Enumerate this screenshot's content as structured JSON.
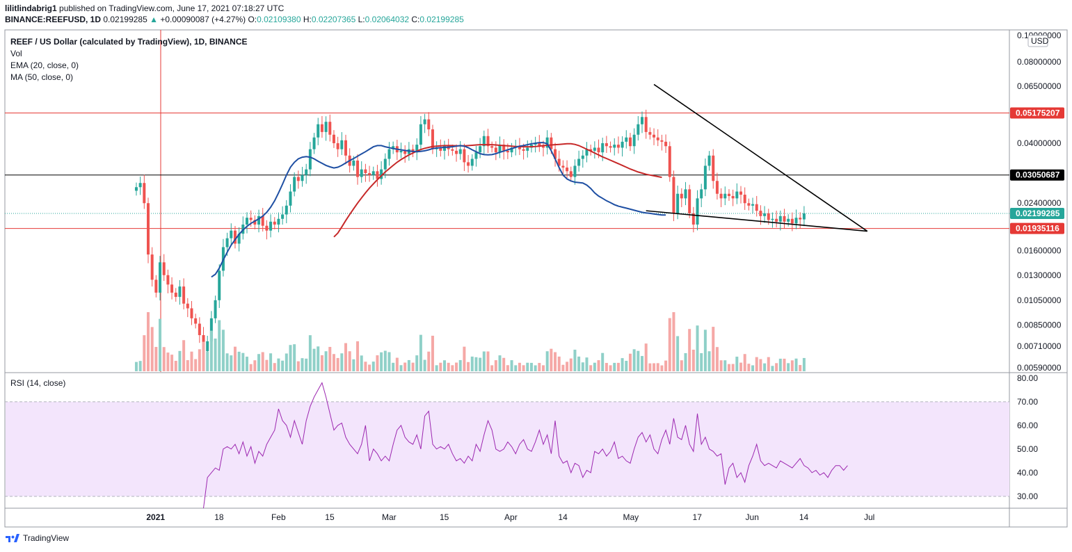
{
  "header": {
    "publisher_user": "lilitlindabrig1",
    "published_text": "published on TradingView.com, June 17, 2021 07:18:27 UTC",
    "symbol": "BINANCE:REEFUSD, 1D",
    "price": "0.02199285",
    "change": "+0.00090087 (+4.27%)",
    "ohlc": {
      "o_label": "O:",
      "o": "0.02109380",
      "h_label": "H:",
      "h": "0.02207365",
      "l_label": "L:",
      "l": "0.02064032",
      "c_label": "C:",
      "c": "0.02199285"
    }
  },
  "legend": {
    "title": "REEF / US Dollar (calculated by TradingView), 1D, BINANCE",
    "vol": "Vol",
    "ema": "EMA (20, close, 0)",
    "ma": "MA (50, close, 0)",
    "rsi": "RSI (14, close)"
  },
  "footer": {
    "brand": "TradingView"
  },
  "colors": {
    "up": "#26a69a",
    "down": "#ef5350",
    "up_vol": "#8fd0c8",
    "down_vol": "#f5a8a6",
    "ema": "#1e4fa3",
    "ma": "#c62828",
    "rsi_line": "#9c27b0",
    "rsi_band": "#f3e5fc",
    "trendline": "#000000",
    "hline_red": "#e53935",
    "hline_black": "#000000"
  },
  "chart_data": {
    "type": "candlestick",
    "symbol": "REEFUSD",
    "interval": "1D",
    "currency": "USD",
    "scale": "log",
    "ylim": [
      0.0057,
      0.105
    ],
    "price_axis_ticks": [
      "0.10000000",
      "0.08000000",
      "0.06500000",
      "0.05175207",
      "0.04000000",
      "0.03050687",
      "0.02400000",
      "0.02199285",
      "0.01935116",
      "0.01600000",
      "0.01300000",
      "0.01050000",
      "0.00850000",
      "0.00710000",
      "0.00590000"
    ],
    "price_axis_values": [
      0.1,
      0.08,
      0.065,
      0.052,
      0.04,
      0.0305,
      0.024,
      0.022,
      0.0194,
      0.016,
      0.013,
      0.0105,
      0.0085,
      0.0071,
      0.0059
    ],
    "price_tags": [
      {
        "label": "0.05175207",
        "value": 0.05175207,
        "style": "red"
      },
      {
        "label": "0.03050687",
        "value": 0.03050687,
        "style": "black"
      },
      {
        "label": "0.02199285",
        "value": 0.02199285,
        "style": "teal"
      },
      {
        "label": "0.01935116",
        "value": 0.01935116,
        "style": "red"
      }
    ],
    "x_axis_labels": [
      {
        "label": "2021",
        "day": 2
      },
      {
        "label": "18",
        "day": 18
      },
      {
        "label": "Feb",
        "day": 33
      },
      {
        "label": "15",
        "day": 46
      },
      {
        "label": "Mar",
        "day": 61
      },
      {
        "label": "15",
        "day": 75
      },
      {
        "label": "Apr",
        "day": 92
      },
      {
        "label": "14",
        "day": 105
      },
      {
        "label": "May",
        "day": 122
      },
      {
        "label": "17",
        "day": 139
      },
      {
        "label": "Jun",
        "day": 153
      },
      {
        "label": "14",
        "day": 166
      },
      {
        "label": "Jul",
        "day": 183
      }
    ],
    "axis_currency_label": "USD",
    "series_first_day": -3,
    "closes": [
      0.0275,
      0.0285,
      0.024,
      0.0155,
      0.0125,
      0.0112,
      0.0145,
      0.013,
      0.012,
      0.0112,
      0.0108,
      0.0118,
      0.0102,
      0.0098,
      0.009,
      0.0086,
      0.0078,
      0.0068,
      0.0074,
      0.009,
      0.0105,
      0.0135,
      0.0165,
      0.0178,
      0.019,
      0.017,
      0.0185,
      0.02,
      0.0212,
      0.0208,
      0.02,
      0.0215,
      0.0198,
      0.019,
      0.0205,
      0.02,
      0.021,
      0.0218,
      0.0235,
      0.0265,
      0.03,
      0.029,
      0.0305,
      0.032,
      0.038,
      0.042,
      0.047,
      0.044,
      0.048,
      0.043,
      0.04,
      0.038,
      0.041,
      0.036,
      0.033,
      0.0345,
      0.03,
      0.032,
      0.031,
      0.0305,
      0.0315,
      0.0295,
      0.032,
      0.035,
      0.038,
      0.039,
      0.037,
      0.0375,
      0.0365,
      0.038,
      0.037,
      0.0395,
      0.047,
      0.049,
      0.045,
      0.038,
      0.0385,
      0.0375,
      0.039,
      0.038,
      0.0375,
      0.0365,
      0.038,
      0.034,
      0.033,
      0.035,
      0.037,
      0.039,
      0.0425,
      0.039,
      0.0385,
      0.037,
      0.0395,
      0.0375,
      0.037,
      0.0385,
      0.039,
      0.038,
      0.0375,
      0.0385,
      0.0395,
      0.04,
      0.039,
      0.0385,
      0.042,
      0.038,
      0.035,
      0.033,
      0.0325,
      0.0315,
      0.03,
      0.033,
      0.035,
      0.036,
      0.038,
      0.0375,
      0.0385,
      0.037,
      0.04,
      0.039,
      0.0385,
      0.0395,
      0.0385,
      0.0405,
      0.042,
      0.039,
      0.043,
      0.047,
      0.05,
      0.044,
      0.043,
      0.042,
      0.041,
      0.0405,
      0.039,
      0.03,
      0.022,
      0.026,
      0.025,
      0.027,
      0.022,
      0.02,
      0.025,
      0.027,
      0.033,
      0.036,
      0.029,
      0.026,
      0.025,
      0.026,
      0.0255,
      0.025,
      0.0265,
      0.0258,
      0.024,
      0.0235,
      0.0238,
      0.0225,
      0.0215,
      0.022,
      0.0208,
      0.021,
      0.0205,
      0.0215,
      0.0205,
      0.021,
      0.0202,
      0.0212,
      0.0209,
      0.022
    ],
    "ema": {
      "name": "EMA (20, close, 0)",
      "first_day": 16,
      "values": [
        0.0128,
        0.0131,
        0.0138,
        0.0148,
        0.0158,
        0.0168,
        0.0176,
        0.0184,
        0.0191,
        0.0197,
        0.0202,
        0.0206,
        0.021,
        0.0215,
        0.0222,
        0.0232,
        0.0245,
        0.0262,
        0.0282,
        0.0305,
        0.0326,
        0.034,
        0.035,
        0.0355,
        0.0357,
        0.0355,
        0.035,
        0.0343,
        0.0337,
        0.0331,
        0.0327,
        0.0324,
        0.0326,
        0.0331,
        0.0338,
        0.0345,
        0.0351,
        0.0358,
        0.0365,
        0.0372,
        0.038,
        0.0388,
        0.0392,
        0.0392,
        0.0388,
        0.0385,
        0.0382,
        0.038,
        0.0378,
        0.0376,
        0.0374,
        0.0373,
        0.0372,
        0.0373,
        0.0375,
        0.0378,
        0.0382,
        0.0384,
        0.0385,
        0.0386,
        0.0387,
        0.0388,
        0.039,
        0.0392,
        0.039,
        0.0385,
        0.0378,
        0.0372,
        0.0366,
        0.0363,
        0.0362,
        0.0363,
        0.0366,
        0.037,
        0.0374,
        0.0378,
        0.0382,
        0.0386,
        0.039,
        0.0392,
        0.0395,
        0.0398,
        0.04,
        0.0402,
        0.0402,
        0.0398,
        0.0375,
        0.035,
        0.0325,
        0.0305,
        0.0295,
        0.029,
        0.0287,
        0.0286,
        0.0285,
        0.028,
        0.0272,
        0.0262,
        0.0255,
        0.025,
        0.0245,
        0.0241,
        0.0237,
        0.0234,
        0.0232,
        0.023,
        0.0228,
        0.0226,
        0.0224,
        0.0222,
        0.0221,
        0.022,
        0.0219,
        0.0218,
        0.0217,
        0.0217
      ]
    },
    "ma": {
      "name": "MA (50, close, 0)",
      "first_day": 47,
      "values": [
        0.018,
        0.0186,
        0.0196,
        0.0207,
        0.0218,
        0.0229,
        0.024,
        0.0251,
        0.0262,
        0.0273,
        0.0283,
        0.0293,
        0.0303,
        0.0313,
        0.0322,
        0.0331,
        0.034,
        0.0348,
        0.0355,
        0.0362,
        0.0368,
        0.0374,
        0.0379,
        0.0383,
        0.0386,
        0.0389,
        0.039,
        0.0391,
        0.0392,
        0.0392,
        0.0392,
        0.0391,
        0.0391,
        0.0391,
        0.0392,
        0.0393,
        0.0394,
        0.0395,
        0.0395,
        0.0395,
        0.0395,
        0.0394,
        0.0393,
        0.0392,
        0.0391,
        0.039,
        0.0389,
        0.0389,
        0.0388,
        0.0388,
        0.0388,
        0.0389,
        0.039,
        0.0392,
        0.0393,
        0.0394,
        0.0395,
        0.0396,
        0.0397,
        0.0398,
        0.0398,
        0.0396,
        0.0392,
        0.0386,
        0.038,
        0.0374,
        0.0368,
        0.0362,
        0.0356,
        0.0351,
        0.0346,
        0.0341,
        0.0336,
        0.0331,
        0.0326,
        0.0321,
        0.0317,
        0.0313,
        0.031,
        0.0307,
        0.0305,
        0.0303,
        0.0301,
        0.0299
      ]
    },
    "trendlines": [
      {
        "name": "upper-trendline",
        "from": {
          "day": 128,
          "price": 0.066
        },
        "to": {
          "day": 182,
          "price": 0.0189
        }
      },
      {
        "name": "lower-trendline",
        "from": {
          "day": 126,
          "price": 0.0225
        },
        "to": {
          "day": 182,
          "price": 0.0189
        }
      }
    ],
    "horizontal_lines": [
      {
        "name": "resistance-line",
        "price": 0.05175207,
        "style": "red"
      },
      {
        "name": "pivot-line",
        "price": 0.03050687,
        "style": "black"
      },
      {
        "name": "support-line",
        "price": 0.01935116,
        "style": "red"
      }
    ],
    "volume": {
      "name": "Vol"
    },
    "rsi": {
      "name": "RSI (14, close)",
      "ylim": [
        25,
        82
      ],
      "band": [
        30,
        70
      ],
      "ticks": [
        "80.00",
        "70.00",
        "60.00",
        "50.00",
        "40.00",
        "30.00"
      ],
      "tick_values": [
        80,
        70,
        60,
        50,
        40,
        30
      ],
      "first_day": 14,
      "values": [
        25,
        38,
        40,
        42,
        41,
        50,
        51,
        50,
        52,
        48,
        53,
        47,
        51,
        44,
        49,
        47,
        52,
        55,
        58,
        67,
        62,
        60,
        55,
        62,
        57,
        52,
        62,
        68,
        72,
        75,
        78,
        72,
        65,
        58,
        60,
        61,
        55,
        52,
        50,
        48,
        52,
        60,
        45,
        50,
        48,
        45,
        47,
        45,
        52,
        58,
        60,
        55,
        53,
        52,
        56,
        50,
        64,
        66,
        52,
        50,
        51,
        50,
        52,
        48,
        45,
        46,
        44,
        47,
        45,
        52,
        49,
        56,
        62,
        58,
        50,
        49,
        50,
        53,
        51,
        48,
        52,
        54,
        50,
        49,
        53,
        58,
        52,
        56,
        48,
        62,
        47,
        44,
        45,
        40,
        44,
        43,
        38,
        41,
        40,
        49,
        48,
        50,
        47,
        49,
        53,
        46,
        47,
        45,
        44,
        50,
        55,
        57,
        53,
        56,
        50,
        48,
        54,
        58,
        52,
        63,
        55,
        54,
        60,
        52,
        49,
        65,
        52,
        55,
        50,
        49,
        47,
        48,
        35,
        42,
        44,
        38,
        40,
        36,
        43,
        47,
        52,
        45,
        43,
        44,
        43,
        42,
        45,
        44,
        43,
        42,
        44,
        46,
        43,
        42,
        40,
        41,
        39,
        40,
        38,
        41,
        43,
        43,
        41,
        43
      ]
    }
  }
}
